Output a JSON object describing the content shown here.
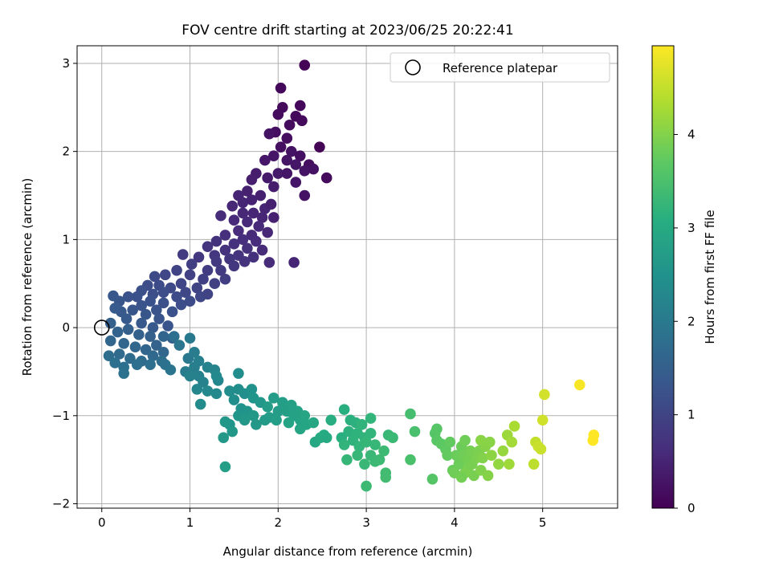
{
  "chart_data": {
    "type": "scatter",
    "title": "FOV centre drift starting at 2023/06/25 20:22:41",
    "xlabel": "Angular distance from reference (arcmin)",
    "ylabel": "Rotation from reference (arcmin)",
    "xlim": [
      -0.28,
      5.85
    ],
    "ylim": [
      -2.05,
      3.2
    ],
    "xticks": [
      0,
      1,
      2,
      3,
      4,
      5
    ],
    "yticks": [
      -2,
      -1,
      0,
      1,
      2,
      3
    ],
    "grid": true,
    "legend": {
      "placement": "top-right",
      "entries": [
        {
          "label": "Reference platepar",
          "marker": "open-circle"
        }
      ]
    },
    "reference_point": {
      "x": 0,
      "y": 0
    },
    "colorbar": {
      "label": "Hours from first FF file",
      "colormap": "viridis",
      "range": [
        0,
        4.95
      ],
      "ticks": [
        0,
        1,
        2,
        3,
        4
      ]
    },
    "points": [
      [
        2.3,
        2.98,
        0.05
      ],
      [
        2.03,
        2.72,
        0.1
      ],
      [
        2.05,
        2.5,
        0.12
      ],
      [
        2.25,
        2.52,
        0.08
      ],
      [
        2.0,
        2.42,
        0.15
      ],
      [
        2.2,
        2.4,
        0.1
      ],
      [
        2.27,
        2.35,
        0.12
      ],
      [
        2.13,
        2.3,
        0.15
      ],
      [
        1.97,
        2.22,
        0.2
      ],
      [
        2.1,
        2.15,
        0.18
      ],
      [
        1.9,
        2.2,
        0.25
      ],
      [
        2.47,
        2.05,
        0.05
      ],
      [
        2.03,
        2.05,
        0.2
      ],
      [
        2.15,
        2.0,
        0.25
      ],
      [
        2.25,
        1.95,
        0.2
      ],
      [
        2.35,
        1.85,
        0.18
      ],
      [
        2.1,
        1.9,
        0.28
      ],
      [
        1.95,
        1.95,
        0.3
      ],
      [
        2.2,
        1.85,
        0.3
      ],
      [
        1.85,
        1.9,
        0.3
      ],
      [
        2.0,
        1.75,
        0.35
      ],
      [
        2.1,
        1.75,
        0.3
      ],
      [
        2.3,
        1.78,
        0.25
      ],
      [
        2.4,
        1.8,
        0.22
      ],
      [
        1.88,
        1.7,
        0.35
      ],
      [
        2.55,
        1.7,
        0.15
      ],
      [
        1.75,
        1.75,
        0.4
      ],
      [
        1.7,
        1.68,
        0.42
      ],
      [
        2.2,
        1.65,
        0.3
      ],
      [
        1.95,
        1.6,
        0.4
      ],
      [
        1.65,
        1.55,
        0.45
      ],
      [
        2.3,
        1.5,
        0.25
      ],
      [
        1.55,
        1.5,
        0.5
      ],
      [
        1.8,
        1.5,
        0.45
      ],
      [
        1.6,
        1.42,
        0.5
      ],
      [
        1.7,
        1.45,
        0.48
      ],
      [
        1.85,
        1.35,
        0.5
      ],
      [
        1.92,
        1.4,
        0.45
      ],
      [
        1.48,
        1.38,
        0.55
      ],
      [
        1.6,
        1.3,
        0.55
      ],
      [
        1.72,
        1.3,
        0.52
      ],
      [
        1.82,
        1.25,
        0.52
      ],
      [
        1.95,
        1.25,
        0.45
      ],
      [
        1.35,
        1.27,
        0.6
      ],
      [
        1.5,
        1.22,
        0.58
      ],
      [
        1.65,
        1.2,
        0.58
      ],
      [
        1.78,
        1.15,
        0.58
      ],
      [
        1.55,
        1.1,
        0.62
      ],
      [
        1.7,
        1.05,
        0.6
      ],
      [
        1.88,
        1.08,
        0.55
      ],
      [
        1.4,
        1.05,
        0.65
      ],
      [
        1.6,
        1.0,
        0.65
      ],
      [
        1.75,
        0.98,
        0.62
      ],
      [
        1.3,
        0.98,
        0.7
      ],
      [
        1.5,
        0.95,
        0.68
      ],
      [
        1.65,
        0.9,
        0.68
      ],
      [
        1.82,
        0.88,
        0.6
      ],
      [
        1.2,
        0.92,
        0.75
      ],
      [
        1.4,
        0.88,
        0.72
      ],
      [
        1.55,
        0.82,
        0.72
      ],
      [
        1.72,
        0.8,
        0.68
      ],
      [
        1.28,
        0.82,
        0.78
      ],
      [
        1.45,
        0.78,
        0.76
      ],
      [
        1.62,
        0.75,
        0.72
      ],
      [
        1.1,
        0.8,
        0.8
      ],
      [
        1.3,
        0.75,
        0.82
      ],
      [
        1.5,
        0.7,
        0.8
      ],
      [
        1.9,
        0.74,
        0.6
      ],
      [
        2.18,
        0.74,
        0.5
      ],
      [
        1.35,
        0.65,
        0.85
      ],
      [
        1.2,
        0.65,
        0.88
      ],
      [
        1.02,
        0.72,
        0.9
      ],
      [
        0.92,
        0.83,
        0.85
      ],
      [
        1.15,
        0.55,
        0.92
      ],
      [
        1.4,
        0.55,
        0.9
      ],
      [
        1.28,
        0.5,
        0.95
      ],
      [
        1.0,
        0.6,
        0.95
      ],
      [
        0.85,
        0.65,
        0.98
      ],
      [
        1.08,
        0.45,
        1.0
      ],
      [
        0.9,
        0.5,
        1.02
      ],
      [
        0.72,
        0.6,
        1.05
      ],
      [
        0.6,
        0.58,
        1.08
      ],
      [
        0.78,
        0.45,
        1.08
      ],
      [
        0.95,
        0.4,
        1.05
      ],
      [
        1.12,
        0.35,
        1.05
      ],
      [
        0.65,
        0.48,
        1.12
      ],
      [
        0.52,
        0.48,
        1.15
      ],
      [
        0.7,
        0.4,
        1.15
      ],
      [
        0.85,
        0.35,
        1.12
      ],
      [
        0.58,
        0.38,
        1.18
      ],
      [
        0.45,
        0.42,
        1.2
      ],
      [
        0.4,
        0.35,
        1.22
      ],
      [
        0.55,
        0.3,
        1.22
      ],
      [
        0.7,
        0.28,
        1.2
      ],
      [
        0.9,
        0.26,
        1.15
      ],
      [
        1.0,
        0.3,
        1.12
      ],
      [
        0.3,
        0.35,
        1.28
      ],
      [
        0.45,
        0.25,
        1.28
      ],
      [
        0.62,
        0.2,
        1.25
      ],
      [
        0.8,
        0.18,
        1.22
      ],
      [
        0.2,
        0.3,
        1.32
      ],
      [
        0.35,
        0.2,
        1.32
      ],
      [
        0.5,
        0.15,
        1.32
      ],
      [
        0.65,
        0.1,
        1.3
      ],
      [
        0.13,
        0.36,
        1.35
      ],
      [
        0.22,
        0.18,
        1.38
      ],
      [
        0.28,
        0.1,
        1.4
      ],
      [
        0.45,
        0.05,
        1.38
      ],
      [
        0.58,
        0.0,
        1.38
      ],
      [
        0.75,
        0.02,
        1.3
      ],
      [
        1.2,
        0.38,
        1.0
      ],
      [
        0.15,
        0.22,
        1.42
      ],
      [
        0.1,
        0.05,
        1.5
      ],
      [
        0.18,
        -0.05,
        1.55
      ],
      [
        0.3,
        -0.02,
        1.5
      ],
      [
        0.42,
        -0.08,
        1.52
      ],
      [
        0.55,
        -0.1,
        1.5
      ],
      [
        0.1,
        -0.15,
        1.62
      ],
      [
        0.25,
        -0.18,
        1.62
      ],
      [
        0.38,
        -0.22,
        1.62
      ],
      [
        0.5,
        -0.25,
        1.6
      ],
      [
        0.62,
        -0.2,
        1.55
      ],
      [
        0.8,
        -0.12,
        1.5
      ],
      [
        0.2,
        -0.3,
        1.7
      ],
      [
        0.32,
        -0.35,
        1.72
      ],
      [
        0.45,
        -0.38,
        1.72
      ],
      [
        0.58,
        -0.32,
        1.68
      ],
      [
        0.7,
        -0.28,
        1.62
      ],
      [
        0.08,
        -0.32,
        1.75
      ],
      [
        0.15,
        -0.4,
        1.8
      ],
      [
        0.25,
        -0.45,
        1.8
      ],
      [
        0.4,
        -0.42,
        1.78
      ],
      [
        0.55,
        -0.42,
        1.78
      ],
      [
        0.25,
        -0.52,
        1.85
      ],
      [
        0.68,
        -0.38,
        1.75
      ],
      [
        0.72,
        -0.42,
        1.85
      ],
      [
        0.78,
        -0.48,
        1.9
      ],
      [
        0.82,
        -0.1,
        1.8
      ],
      [
        0.7,
        -0.1,
        1.6
      ],
      [
        0.88,
        -0.2,
        1.92
      ],
      [
        0.98,
        -0.35,
        1.98
      ],
      [
        1.0,
        -0.12,
        2.0
      ],
      [
        1.05,
        -0.28,
        2.05
      ],
      [
        0.95,
        -0.5,
        2.05
      ],
      [
        1.05,
        -0.45,
        2.1
      ],
      [
        1.1,
        -0.55,
        2.15
      ],
      [
        1.0,
        -0.55,
        2.15
      ],
      [
        1.15,
        -0.62,
        2.2
      ],
      [
        1.1,
        -0.38,
        2.12
      ],
      [
        1.2,
        -0.45,
        2.18
      ],
      [
        1.28,
        -0.48,
        2.22
      ],
      [
        1.08,
        -0.7,
        2.25
      ],
      [
        1.2,
        -0.72,
        2.3
      ],
      [
        1.32,
        -0.6,
        2.28
      ],
      [
        1.3,
        -0.75,
        2.32
      ],
      [
        1.12,
        -0.87,
        2.35
      ],
      [
        1.45,
        -0.72,
        2.4
      ],
      [
        1.5,
        -0.82,
        2.42
      ],
      [
        1.55,
        -0.7,
        2.42
      ],
      [
        1.62,
        -0.75,
        2.45
      ],
      [
        1.58,
        -0.92,
        2.5
      ],
      [
        1.7,
        -0.7,
        2.5
      ],
      [
        1.72,
        -0.8,
        2.55
      ],
      [
        1.55,
        -1.0,
        2.55
      ],
      [
        1.65,
        -0.95,
        2.55
      ],
      [
        1.8,
        -0.85,
        2.6
      ],
      [
        1.72,
        -1.0,
        2.62
      ],
      [
        1.62,
        -1.05,
        2.62
      ],
      [
        1.45,
        -1.1,
        2.55
      ],
      [
        1.4,
        -1.07,
        2.6
      ],
      [
        1.48,
        -1.18,
        2.62
      ],
      [
        1.38,
        -1.25,
        2.62
      ],
      [
        1.55,
        -0.52,
        2.4
      ],
      [
        1.3,
        -0.55,
        2.32
      ],
      [
        1.88,
        -0.9,
        2.7
      ],
      [
        1.95,
        -0.8,
        2.7
      ],
      [
        1.9,
        -1.02,
        2.72
      ],
      [
        2.0,
        -0.95,
        2.72
      ],
      [
        2.05,
        -0.85,
        2.75
      ],
      [
        1.98,
        -1.05,
        2.75
      ],
      [
        2.1,
        -0.95,
        2.78
      ],
      [
        2.15,
        -0.88,
        2.8
      ],
      [
        2.22,
        -0.95,
        2.82
      ],
      [
        2.25,
        -1.05,
        2.85
      ],
      [
        2.18,
        -1.0,
        2.82
      ],
      [
        2.12,
        -1.08,
        2.85
      ],
      [
        2.3,
        -1.0,
        2.88
      ],
      [
        2.32,
        -1.1,
        2.9
      ],
      [
        2.4,
        -1.08,
        2.92
      ],
      [
        2.25,
        -1.15,
        2.9
      ],
      [
        2.42,
        -1.3,
        2.95
      ],
      [
        1.75,
        -1.1,
        2.62
      ],
      [
        1.4,
        -1.58,
        2.75
      ],
      [
        1.85,
        -1.05,
        2.68
      ],
      [
        2.48,
        -1.25,
        3.0
      ],
      [
        2.52,
        -1.22,
        3.02
      ],
      [
        2.55,
        -1.25,
        3.0
      ],
      [
        2.6,
        -1.05,
        3.05
      ],
      [
        2.72,
        -1.25,
        3.1
      ],
      [
        2.75,
        -0.93,
        3.1
      ],
      [
        2.82,
        -1.05,
        3.12
      ],
      [
        2.88,
        -1.08,
        3.15
      ],
      [
        2.8,
        -1.18,
        3.15
      ],
      [
        2.9,
        -1.2,
        3.18
      ],
      [
        2.95,
        -1.1,
        3.2
      ],
      [
        2.98,
        -1.25,
        3.2
      ],
      [
        2.85,
        -1.28,
        3.18
      ],
      [
        2.92,
        -1.35,
        3.22
      ],
      [
        3.0,
        -1.3,
        3.25
      ],
      [
        3.05,
        -1.2,
        3.22
      ],
      [
        3.05,
        -1.03,
        3.22
      ],
      [
        3.1,
        -1.33,
        3.28
      ],
      [
        2.75,
        -1.33,
        3.2
      ],
      [
        2.78,
        -1.5,
        3.25
      ],
      [
        2.9,
        -1.45,
        3.28
      ],
      [
        2.98,
        -1.55,
        3.3
      ],
      [
        3.05,
        -1.45,
        3.3
      ],
      [
        3.1,
        -1.52,
        3.32
      ],
      [
        3.15,
        -1.5,
        3.35
      ],
      [
        3.0,
        -1.8,
        3.35
      ],
      [
        3.2,
        -1.4,
        3.35
      ],
      [
        3.22,
        -1.65,
        3.38
      ],
      [
        3.25,
        -1.22,
        3.3
      ],
      [
        3.3,
        -1.25,
        3.32
      ],
      [
        3.22,
        -1.7,
        3.4
      ],
      [
        3.5,
        -0.98,
        3.45
      ],
      [
        3.55,
        -1.18,
        3.48
      ],
      [
        3.5,
        -1.5,
        3.5
      ],
      [
        3.75,
        -1.72,
        3.6
      ],
      [
        3.78,
        -1.2,
        3.6
      ],
      [
        3.8,
        -1.15,
        3.62
      ],
      [
        3.8,
        -1.28,
        3.65
      ],
      [
        3.85,
        -1.32,
        3.68
      ],
      [
        3.9,
        -1.38,
        3.72
      ],
      [
        3.92,
        -1.45,
        3.75
      ],
      [
        3.95,
        -1.3,
        3.75
      ],
      [
        3.98,
        -1.62,
        3.78
      ],
      [
        4.02,
        -1.45,
        3.8
      ],
      [
        4.05,
        -1.55,
        3.82
      ],
      [
        4.08,
        -1.35,
        3.82
      ],
      [
        4.1,
        -1.45,
        3.85
      ],
      [
        4.12,
        -1.28,
        3.85
      ],
      [
        4.15,
        -1.5,
        3.88
      ],
      [
        4.15,
        -1.6,
        3.9
      ],
      [
        4.18,
        -1.4,
        3.9
      ],
      [
        4.2,
        -1.55,
        3.92
      ],
      [
        4.22,
        -1.68,
        3.92
      ],
      [
        4.25,
        -1.48,
        3.95
      ],
      [
        4.28,
        -1.4,
        3.95
      ],
      [
        4.3,
        -1.62,
        3.98
      ],
      [
        4.32,
        -1.48,
        4.0
      ],
      [
        4.35,
        -1.35,
        4.02
      ],
      [
        4.38,
        -1.68,
        4.02
      ],
      [
        4.4,
        -1.3,
        4.05
      ],
      [
        4.42,
        -1.45,
        4.08
      ],
      [
        4.5,
        -1.55,
        4.12
      ],
      [
        4.55,
        -1.4,
        4.15
      ],
      [
        4.6,
        -1.22,
        4.2
      ],
      [
        4.62,
        -1.55,
        4.22
      ],
      [
        4.65,
        -1.3,
        4.25
      ],
      [
        4.68,
        -1.12,
        4.3
      ],
      [
        4.3,
        -1.28,
        4.05
      ],
      [
        4.12,
        -1.65,
        3.95
      ],
      [
        4.0,
        -1.65,
        3.85
      ],
      [
        4.08,
        -1.7,
        3.88
      ],
      [
        4.9,
        -1.55,
        4.45
      ],
      [
        4.92,
        -1.3,
        4.5
      ],
      [
        4.95,
        -1.35,
        4.55
      ],
      [
        4.98,
        -1.38,
        4.55
      ],
      [
        5.0,
        -1.05,
        4.6
      ],
      [
        5.02,
        -0.76,
        4.62
      ],
      [
        5.42,
        -0.65,
        4.9
      ],
      [
        5.58,
        -1.22,
        4.95
      ],
      [
        5.57,
        -1.28,
        4.95
      ]
    ]
  }
}
